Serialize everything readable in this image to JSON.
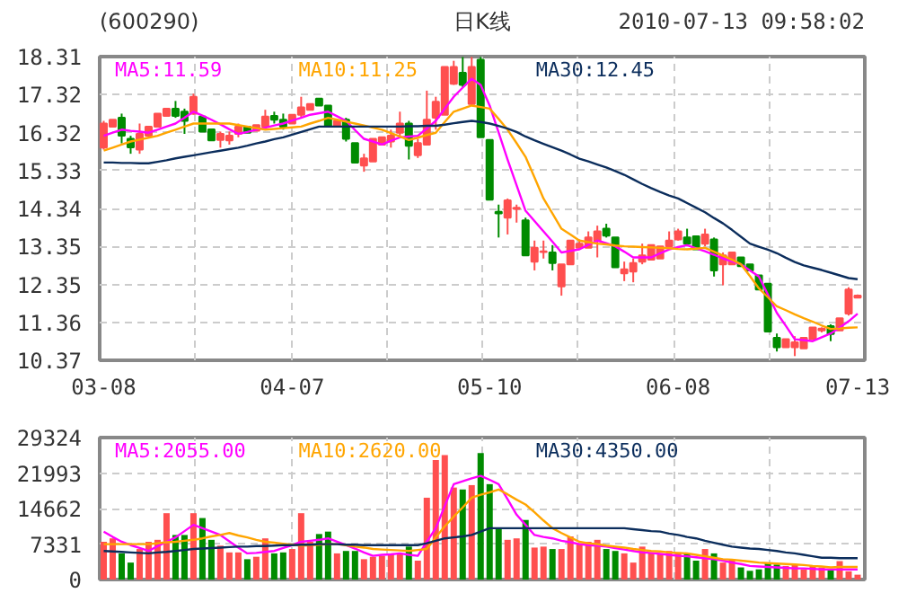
{
  "chart_data": [
    {
      "type": "candlestick",
      "title": "(600290)",
      "subtitle": "日K线",
      "annotations": [
        "2010-07-13 09:58:02"
      ],
      "categories": [
        "03-08",
        null,
        null,
        null,
        null,
        null,
        null,
        null,
        null,
        null,
        null,
        null,
        null,
        null,
        null,
        null,
        null,
        null,
        null,
        null,
        null,
        "04-07",
        null,
        null,
        null,
        null,
        null,
        null,
        null,
        null,
        null,
        null,
        null,
        null,
        null,
        null,
        null,
        null,
        null,
        null,
        null,
        null,
        null,
        "05-10",
        null,
        null,
        null,
        null,
        null,
        null,
        null,
        null,
        null,
        null,
        null,
        null,
        null,
        null,
        null,
        null,
        null,
        null,
        null,
        null,
        "06-08",
        null,
        null,
        null,
        null,
        null,
        null,
        null,
        null,
        null,
        null,
        null,
        null,
        null,
        null,
        null,
        null,
        null,
        null,
        null,
        "07-13"
      ],
      "ohlc": [
        [
          15.93,
          16.63,
          15.88,
          16.56
        ],
        [
          16.48,
          16.66,
          16.48,
          16.66
        ],
        [
          16.71,
          16.82,
          16.04,
          16.24
        ],
        [
          16.16,
          16.24,
          15.77,
          15.94
        ],
        [
          15.88,
          16.56,
          15.77,
          16.29
        ],
        [
          16.24,
          16.48,
          16.24,
          16.48
        ],
        [
          16.48,
          16.82,
          16.48,
          16.82
        ],
        [
          16.76,
          16.95,
          16.76,
          16.95
        ],
        [
          16.95,
          17.15,
          16.71,
          16.76
        ],
        [
          16.87,
          16.95,
          16.29,
          16.63
        ],
        [
          16.82,
          17.34,
          16.79,
          17.26
        ],
        [
          16.74,
          16.74,
          16.35,
          16.35
        ],
        [
          16.41,
          16.41,
          16.12,
          16.12
        ],
        [
          16.13,
          16.35,
          15.93,
          16.29
        ],
        [
          16.12,
          16.35,
          16.01,
          16.24
        ],
        [
          16.29,
          16.56,
          16.2,
          16.48
        ],
        [
          16.48,
          16.48,
          16.32,
          16.32
        ],
        [
          16.37,
          16.52,
          16.37,
          16.52
        ],
        [
          16.48,
          16.92,
          16.41,
          16.74
        ],
        [
          16.76,
          16.87,
          16.56,
          16.66
        ],
        [
          16.66,
          16.82,
          16.4,
          16.48
        ],
        [
          16.56,
          16.79,
          16.56,
          16.79
        ],
        [
          16.79,
          17.26,
          16.71,
          16.98
        ],
        [
          16.92,
          17.07,
          16.92,
          17.07
        ],
        [
          17.21,
          17.21,
          17.03,
          17.03
        ],
        [
          17.03,
          17.03,
          16.48,
          16.48
        ],
        [
          16.48,
          16.63,
          16.48,
          16.63
        ],
        [
          16.66,
          16.71,
          16.09,
          16.16
        ],
        [
          16.05,
          16.05,
          15.54,
          15.54
        ],
        [
          15.46,
          15.77,
          15.3,
          15.65
        ],
        [
          15.57,
          16.16,
          15.57,
          16.16
        ],
        [
          16.01,
          16.2,
          16.01,
          16.2
        ],
        [
          16.09,
          16.4,
          15.93,
          16.24
        ],
        [
          16.32,
          16.87,
          16.24,
          16.56
        ],
        [
          16.56,
          16.63,
          15.62,
          15.98
        ],
        [
          15.73,
          16.16,
          15.66,
          16.05
        ],
        [
          16.01,
          17.42,
          16.01,
          16.66
        ],
        [
          16.71,
          17.26,
          16.4,
          17.13
        ],
        [
          16.79,
          18.04,
          16.79,
          18.04
        ],
        [
          17.6,
          18.2,
          17.57,
          18.04
        ],
        [
          17.89,
          18.3,
          17.5,
          17.57
        ],
        [
          17.07,
          18.3,
          17.03,
          18.04
        ],
        [
          18.23,
          18.3,
          16.2,
          16.2
        ],
        [
          16.13,
          16.13,
          14.57,
          14.57
        ],
        [
          14.25,
          14.44,
          13.58,
          14.21
        ],
        [
          14.1,
          14.6,
          13.66,
          14.55
        ],
        [
          14.33,
          14.44,
          13.97,
          14.36
        ],
        [
          14.03,
          14.1,
          13.11,
          13.11
        ],
        [
          12.95,
          13.5,
          12.72,
          13.31
        ],
        [
          13.2,
          13.5,
          13.03,
          13.22
        ],
        [
          13.19,
          13.38,
          12.72,
          12.91
        ],
        [
          12.3,
          12.88,
          12.06,
          12.88
        ],
        [
          12.88,
          13.5,
          12.88,
          13.5
        ],
        [
          13.31,
          13.53,
          13.31,
          13.42
        ],
        [
          13.31,
          13.74,
          13.31,
          13.58
        ],
        [
          13.5,
          13.89,
          13.06,
          13.74
        ],
        [
          13.81,
          13.94,
          13.58,
          13.63
        ],
        [
          13.58,
          13.58,
          12.8,
          12.8
        ],
        [
          12.64,
          12.95,
          12.44,
          12.75
        ],
        [
          12.69,
          13.03,
          12.41,
          12.91
        ],
        [
          12.95,
          13.42,
          12.88,
          13.11
        ],
        [
          13.0,
          13.38,
          13.0,
          13.38
        ],
        [
          13.03,
          13.35,
          13.03,
          13.35
        ],
        [
          13.35,
          13.74,
          13.27,
          13.5
        ],
        [
          13.53,
          13.81,
          13.5,
          13.74
        ],
        [
          13.58,
          13.81,
          13.35,
          13.42
        ],
        [
          13.61,
          13.61,
          13.27,
          13.27
        ],
        [
          13.42,
          13.81,
          13.35,
          13.66
        ],
        [
          13.53,
          13.58,
          12.56,
          12.72
        ],
        [
          12.88,
          13.19,
          12.33,
          13.11
        ],
        [
          12.88,
          13.19,
          12.88,
          13.19
        ],
        [
          13.06,
          13.06,
          12.83,
          12.83
        ],
        [
          12.88,
          12.88,
          12.72,
          12.72
        ],
        [
          12.59,
          12.59,
          12.22,
          12.22
        ],
        [
          12.37,
          12.37,
          11.12,
          11.12
        ],
        [
          10.96,
          11.07,
          10.6,
          10.71
        ],
        [
          10.71,
          10.92,
          10.71,
          10.92
        ],
        [
          10.71,
          11.0,
          10.48,
          10.84
        ],
        [
          10.68,
          10.96,
          10.68,
          10.96
        ],
        [
          10.92,
          11.23,
          10.92,
          11.23
        ],
        [
          11.15,
          11.23,
          11.1,
          11.2
        ],
        [
          11.26,
          11.31,
          10.87,
          11.06
        ],
        [
          11.15,
          11.47,
          11.15,
          11.47
        ],
        [
          11.59,
          12.28,
          11.54,
          12.22
        ],
        [
          12.01,
          12.09,
          12.01,
          12.06
        ]
      ],
      "colors": [
        "#ff4f4f",
        "#ff4f4f",
        "#008b00",
        "#008b00",
        "#ff4f4f",
        "#ff4f4f",
        "#ff4f4f",
        "#ff4f4f",
        "#008b00",
        "#008b00",
        "#ff4f4f",
        "#008b00",
        "#008b00",
        "#ff4f4f",
        "#ff4f4f",
        "#ff4f4f",
        "#008b00",
        "#ff4f4f",
        "#ff4f4f",
        "#008b00",
        "#008b00",
        "#ff4f4f",
        "#ff4f4f",
        "#ff4f4f",
        "#008b00",
        "#008b00",
        "#ff4f4f",
        "#008b00",
        "#008b00",
        "#ff4f4f",
        "#ff4f4f",
        "#ff4f4f",
        "#ff4f4f",
        "#ff4f4f",
        "#008b00",
        "#ff4f4f",
        "#ff4f4f",
        "#ff4f4f",
        "#ff4f4f",
        "#ff4f4f",
        "#008b00",
        "#ff4f4f",
        "#008b00",
        "#008b00",
        "#008b00",
        "#ff4f4f",
        "#ff4f4f",
        "#008b00",
        "#ff4f4f",
        "#ff4f4f",
        "#008b00",
        "#ff4f4f",
        "#ff4f4f",
        "#ff4f4f",
        "#ff4f4f",
        "#ff4f4f",
        "#008b00",
        "#008b00",
        "#ff4f4f",
        "#ff4f4f",
        "#ff4f4f",
        "#ff4f4f",
        "#ff4f4f",
        "#ff4f4f",
        "#ff4f4f",
        "#008b00",
        "#008b00",
        "#ff4f4f",
        "#008b00",
        "#ff4f4f",
        "#ff4f4f",
        "#008b00",
        "#008b00",
        "#008b00",
        "#008b00",
        "#008b00",
        "#ff4f4f",
        "#ff4f4f",
        "#ff4f4f",
        "#ff4f4f",
        "#ff4f4f",
        "#008b00",
        "#ff4f4f",
        "#ff4f4f",
        "#ff4f4f"
      ],
      "series": [
        {
          "type": "line",
          "name": "MA5:11.59",
          "color": "#ff00ff",
          "values": [
            16.24,
            16.32,
            16.4,
            16.37,
            16.35,
            16.32,
            16.4,
            16.48,
            16.56,
            16.71,
            16.87,
            16.77,
            16.66,
            16.54,
            16.41,
            16.29,
            16.34,
            16.4,
            16.45,
            16.51,
            16.56,
            16.64,
            16.71,
            16.79,
            16.83,
            16.87,
            16.75,
            16.63,
            16.39,
            16.16,
            16.09,
            16.01,
            16.11,
            16.2,
            16.22,
            16.24,
            16.43,
            16.63,
            16.95,
            17.26,
            17.5,
            17.73,
            17.57,
            17.03,
            16.33,
            15.62,
            14.95,
            14.28,
            14.01,
            13.74,
            13.47,
            13.19,
            13.23,
            13.27,
            13.39,
            13.5,
            13.43,
            13.35,
            13.21,
            13.06,
            13.06,
            13.06,
            13.17,
            13.27,
            13.33,
            13.38,
            13.3,
            13.22,
            13.13,
            13.03,
            12.96,
            12.88,
            12.72,
            12.56,
            12.09,
            11.61,
            11.27,
            10.92,
            10.9,
            10.87,
            10.97,
            11.07,
            11.23,
            11.39,
            11.59
          ]
        },
        {
          "type": "line",
          "name": "MA10:11.25",
          "color": "#ffa500",
          "values": [
            15.85,
            15.93,
            16.01,
            16.09,
            16.14,
            16.19,
            16.24,
            16.32,
            16.4,
            16.48,
            16.56,
            16.56,
            16.56,
            16.56,
            16.56,
            16.52,
            16.48,
            16.44,
            16.4,
            16.42,
            16.44,
            16.46,
            16.48,
            16.56,
            16.63,
            16.71,
            16.66,
            16.61,
            16.56,
            16.51,
            16.45,
            16.4,
            16.31,
            16.22,
            16.13,
            16.19,
            16.26,
            16.32,
            16.6,
            16.87,
            16.95,
            17.03,
            16.99,
            16.95,
            16.68,
            16.4,
            16.05,
            15.69,
            15.15,
            14.6,
            14.21,
            13.81,
            13.66,
            13.5,
            13.46,
            13.42,
            13.4,
            13.37,
            13.35,
            13.34,
            13.33,
            13.32,
            13.31,
            13.3,
            13.28,
            13.27,
            13.29,
            13.31,
            13.21,
            13.11,
            13.0,
            12.88,
            12.57,
            12.25,
            12.02,
            11.78,
            11.68,
            11.57,
            11.47,
            11.38,
            11.28,
            11.19,
            11.2,
            11.22,
            11.23
          ]
        },
        {
          "type": "line",
          "name": "MA30:12.45",
          "color": "#0b2d5c",
          "values": [
            15.54,
            15.54,
            15.53,
            15.53,
            15.52,
            15.52,
            15.56,
            15.6,
            15.65,
            15.69,
            15.73,
            15.77,
            15.81,
            15.85,
            15.89,
            15.93,
            15.98,
            16.04,
            16.09,
            16.15,
            16.2,
            16.27,
            16.34,
            16.41,
            16.48,
            16.48,
            16.48,
            16.48,
            16.48,
            16.48,
            16.48,
            16.48,
            16.48,
            16.48,
            16.49,
            16.49,
            16.5,
            16.5,
            16.53,
            16.57,
            16.6,
            16.63,
            16.6,
            16.56,
            16.5,
            16.43,
            16.34,
            16.22,
            16.12,
            16.03,
            15.94,
            15.85,
            15.75,
            15.64,
            15.57,
            15.49,
            15.41,
            15.32,
            15.22,
            15.1,
            14.98,
            14.87,
            14.77,
            14.68,
            14.6,
            14.48,
            14.36,
            14.24,
            14.09,
            13.95,
            13.78,
            13.6,
            13.42,
            13.34,
            13.26,
            13.17,
            13.05,
            12.94,
            12.85,
            12.79,
            12.73,
            12.66,
            12.59,
            12.52,
            12.49
          ]
        }
      ],
      "ylim": [
        10.37,
        18.31
      ],
      "yticks": [
        10.37,
        11.36,
        12.35,
        13.35,
        14.34,
        15.33,
        16.32,
        17.32,
        18.31
      ],
      "grid": true,
      "legend": "top"
    },
    {
      "type": "bar",
      "categories": [
        null,
        null,
        null,
        null,
        null,
        null,
        null,
        null,
        null,
        null,
        null,
        null,
        null,
        null,
        null,
        null,
        null,
        null,
        null,
        null,
        null,
        null,
        null,
        null,
        null,
        null,
        null,
        null,
        null,
        null,
        null,
        null,
        null,
        null,
        null,
        null,
        null,
        null,
        null,
        null,
        null,
        null,
        null,
        null,
        null,
        null,
        null,
        null,
        null,
        null,
        null,
        null,
        null,
        null,
        null,
        null,
        null,
        null,
        null,
        null,
        null,
        null,
        null,
        null,
        null,
        null,
        null,
        null,
        null,
        null,
        null,
        null,
        null,
        null,
        null,
        null,
        null,
        null,
        null,
        null,
        null,
        null,
        null,
        null,
        null
      ],
      "values": [
        7800,
        8500,
        5400,
        3500,
        6300,
        7800,
        8200,
        13700,
        9200,
        9200,
        13700,
        12700,
        8200,
        7000,
        5600,
        5600,
        4200,
        4700,
        8500,
        5400,
        5600,
        6300,
        13700,
        7800,
        9400,
        9900,
        5400,
        5900,
        5900,
        4200,
        4700,
        4900,
        5400,
        5400,
        6800,
        3900,
        16900,
        24700,
        25700,
        19000,
        18600,
        19500,
        26100,
        19700,
        10600,
        8200,
        8500,
        12300,
        6600,
        6800,
        6300,
        6300,
        8900,
        7300,
        7800,
        8200,
        6300,
        5900,
        5400,
        3500,
        6800,
        5400,
        5400,
        5900,
        5600,
        5400,
        3900,
        6300,
        5400,
        3500,
        4200,
        2500,
        1800,
        2100,
        3500,
        3100,
        2800,
        3100,
        2100,
        2800,
        2500,
        2000,
        3800,
        1700,
        1000
      ],
      "colors": [
        "#ff4f4f",
        "#ff4f4f",
        "#008b00",
        "#008b00",
        "#ff4f4f",
        "#ff4f4f",
        "#ff4f4f",
        "#ff4f4f",
        "#008b00",
        "#008b00",
        "#ff4f4f",
        "#008b00",
        "#008b00",
        "#ff4f4f",
        "#ff4f4f",
        "#ff4f4f",
        "#008b00",
        "#ff4f4f",
        "#ff4f4f",
        "#008b00",
        "#008b00",
        "#ff4f4f",
        "#ff4f4f",
        "#ff4f4f",
        "#008b00",
        "#008b00",
        "#ff4f4f",
        "#008b00",
        "#008b00",
        "#ff4f4f",
        "#ff4f4f",
        "#ff4f4f",
        "#ff4f4f",
        "#ff4f4f",
        "#008b00",
        "#ff4f4f",
        "#ff4f4f",
        "#ff4f4f",
        "#ff4f4f",
        "#ff4f4f",
        "#008b00",
        "#ff4f4f",
        "#008b00",
        "#008b00",
        "#008b00",
        "#ff4f4f",
        "#ff4f4f",
        "#008b00",
        "#ff4f4f",
        "#ff4f4f",
        "#008b00",
        "#ff4f4f",
        "#ff4f4f",
        "#ff4f4f",
        "#ff4f4f",
        "#ff4f4f",
        "#008b00",
        "#008b00",
        "#ff4f4f",
        "#ff4f4f",
        "#ff4f4f",
        "#ff4f4f",
        "#ff4f4f",
        "#ff4f4f",
        "#ff4f4f",
        "#008b00",
        "#008b00",
        "#ff4f4f",
        "#008b00",
        "#ff4f4f",
        "#ff4f4f",
        "#008b00",
        "#008b00",
        "#008b00",
        "#008b00",
        "#008b00",
        "#ff4f4f",
        "#ff4f4f",
        "#ff4f4f",
        "#ff4f4f",
        "#ff4f4f",
        "#008b00",
        "#ff4f4f",
        "#ff4f4f",
        "#ff4f4f"
      ],
      "series": [
        {
          "type": "line",
          "name": "MA5:2055.00",
          "color": "#ff00ff",
          "values": [
            9900,
            8800,
            7800,
            7100,
            6500,
            5900,
            6900,
            7800,
            8700,
            10000,
            11300,
            10600,
            9900,
            9200,
            7900,
            6600,
            5400,
            5500,
            5700,
            5900,
            6500,
            7100,
            7800,
            8000,
            8200,
            8500,
            7800,
            7100,
            6400,
            5600,
            4900,
            5100,
            5200,
            5400,
            5100,
            4900,
            7800,
            10600,
            15200,
            19700,
            20300,
            20900,
            21400,
            20600,
            19700,
            16600,
            13400,
            11300,
            9200,
            8800,
            8500,
            8000,
            7700,
            7300,
            7100,
            7000,
            6800,
            6500,
            6200,
            5900,
            5600,
            5500,
            5300,
            5100,
            4900,
            4800,
            4600,
            4400,
            4200,
            3900,
            3500,
            3200,
            2800,
            2700,
            2600,
            2500,
            2400,
            2300,
            2300,
            2200,
            2100,
            2100,
            2100,
            2100,
            2100
          ]
        },
        {
          "type": "line",
          "name": "MA10:2620.00",
          "color": "#ffa500",
          "values": [
            7300,
            7300,
            7300,
            7300,
            7300,
            7300,
            7500,
            7700,
            7800,
            8000,
            8200,
            8500,
            8900,
            9200,
            9600,
            9100,
            8700,
            8200,
            7800,
            7600,
            7400,
            7200,
            7000,
            7100,
            7200,
            7300,
            7300,
            7100,
            6800,
            6600,
            6300,
            6200,
            6100,
            6000,
            5900,
            6100,
            6300,
            8700,
            11000,
            13000,
            14900,
            16900,
            17500,
            18000,
            18600,
            17600,
            16500,
            15500,
            13900,
            12200,
            10600,
            9600,
            8700,
            7800,
            7500,
            7300,
            7000,
            6800,
            6600,
            6300,
            6100,
            5900,
            5800,
            5600,
            5500,
            5400,
            5100,
            4800,
            4500,
            4200,
            4100,
            3900,
            3700,
            3500,
            3400,
            3300,
            3200,
            3100,
            3000,
            2800,
            2700,
            2500,
            2600,
            2600,
            2600
          ]
        },
        {
          "type": "line",
          "name": "MA30:4350.00",
          "color": "#0b2d5c",
          "values": [
            5900,
            5800,
            5700,
            5600,
            5500,
            5400,
            5600,
            5700,
            5900,
            6100,
            6300,
            6400,
            6500,
            6600,
            6700,
            6800,
            6800,
            6900,
            6900,
            7000,
            7100,
            7100,
            7200,
            7200,
            7300,
            7300,
            7300,
            7200,
            7200,
            7100,
            7100,
            7100,
            7100,
            7100,
            7100,
            7100,
            7500,
            8000,
            8500,
            8700,
            8900,
            9200,
            9900,
            10600,
            10600,
            10600,
            10600,
            10600,
            10600,
            10600,
            10600,
            10600,
            10600,
            10600,
            10600,
            10600,
            10600,
            10600,
            10600,
            10400,
            10200,
            10000,
            9900,
            9500,
            9200,
            8800,
            8500,
            8000,
            7600,
            7200,
            6800,
            6600,
            6400,
            6300,
            6100,
            5900,
            5600,
            5400,
            5100,
            4800,
            4500,
            4500,
            4400,
            4400,
            4400
          ]
        }
      ],
      "ylim": [
        0,
        29324
      ],
      "yticks": [
        0,
        7331,
        14662,
        21993,
        29324
      ],
      "tick_labels": "y",
      "grid": true,
      "legend": "top"
    }
  ]
}
